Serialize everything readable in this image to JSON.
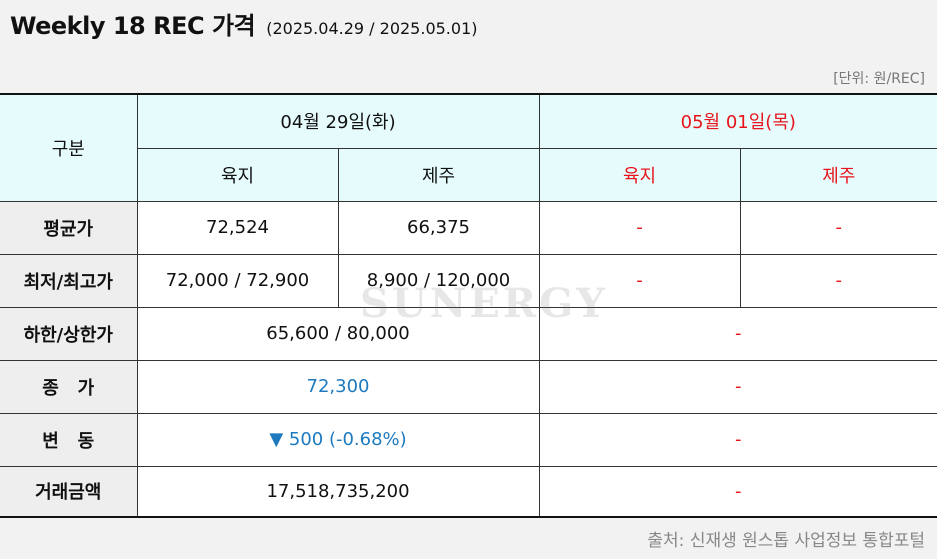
{
  "header": {
    "title": "Weekly 18 REC 가격",
    "period": "(2025.04.29 / 2025.05.01)",
    "unit": "[단위: 원/REC]"
  },
  "table": {
    "corner_label": "구분",
    "dates": [
      "04월 29일(화)",
      "05월 01일(목)"
    ],
    "regions": [
      "육지",
      "제주",
      "육지",
      "제주"
    ],
    "rows": {
      "avg": {
        "label": "평균가",
        "d1_land": "72,524",
        "d1_jeju": "66,375",
        "d2_land": "-",
        "d2_jeju": "-"
      },
      "minmax": {
        "label": "최저/최고가",
        "d1_land": "72,000 / 72,900",
        "d1_jeju": "8,900 / 120,000",
        "d2_land": "-",
        "d2_jeju": "-"
      },
      "limit": {
        "label": "하한/상한가",
        "d1": "65,600 / 80,000",
        "d2": "-"
      },
      "close": {
        "label": "종   가",
        "d1": "72,300",
        "d2": "-"
      },
      "change": {
        "label": "변   동",
        "d1": "▼ 500 (-0.68%)",
        "d2": "-"
      },
      "volume": {
        "label": "거래금액",
        "d1": "17,518,735,200",
        "d2": "-"
      }
    }
  },
  "watermark": "SUNERGY",
  "source": "출처: 신재생 원스톱 사업정보 통합포털",
  "colors": {
    "date2": "#e8141b",
    "highlight": "#1e7abf",
    "header_bg": "#e6fbfc",
    "row_header_bg": "#eeeeee"
  }
}
